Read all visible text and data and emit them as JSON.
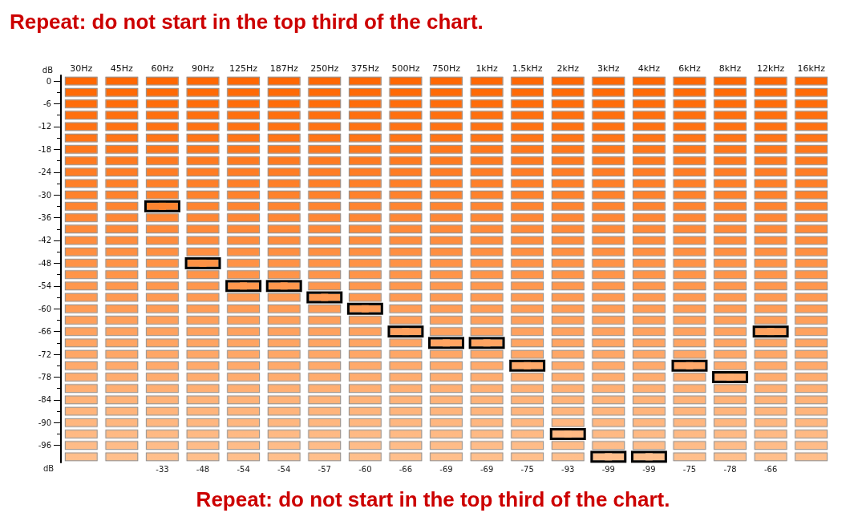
{
  "chart_data": {
    "type": "scatter",
    "title": "Repeat: do not start in the top third of the chart.",
    "ylabel": "dB",
    "annotations": [
      "dB",
      "Repeat: do not start in the top third of the chart."
    ],
    "categories": [
      "30Hz",
      "45Hz",
      "60Hz",
      "90Hz",
      "125Hz",
      "187Hz",
      "250Hz",
      "375Hz",
      "500Hz",
      "750Hz",
      "1kHz",
      "1.5kHz",
      "2kHz",
      "3kHz",
      "4kHz",
      "6kHz",
      "8kHz",
      "12kHz",
      "16kHz"
    ],
    "values": [
      null,
      null,
      -33,
      -48,
      -54,
      -54,
      -57,
      -60,
      -66,
      -69,
      -69,
      -75,
      -93,
      -99,
      -99,
      -75,
      -78,
      -66,
      null
    ],
    "colors": [
      null,
      null,
      "#ff842f",
      "#ff9245",
      "#ff974d",
      "#ff974d",
      "#ff9a52",
      "#ff9d56",
      "#ffa25f",
      "#ffa563",
      "#ffa563",
      "#ffaa6c",
      "#ffbb85",
      "#ffc08e",
      "#ffc08e",
      "#ffaa6c",
      "#ffad70",
      "#ffa25f",
      null
    ],
    "marker": "square",
    "data_labels": true,
    "ylim": [
      -100.5,
      1.5
    ],
    "yticks": [
      0,
      {
        "value": -3,
        "label": null
      },
      -6,
      {
        "value": -9,
        "label": null
      },
      -12,
      {
        "value": -15,
        "label": null
      },
      -18,
      {
        "value": -21,
        "label": null
      },
      -24,
      {
        "value": -27,
        "label": null
      },
      -30,
      {
        "value": -33,
        "label": null
      },
      -36,
      {
        "value": -39,
        "label": null
      },
      -42,
      {
        "value": -45,
        "label": null
      },
      -48,
      {
        "value": -51,
        "label": null
      },
      -54,
      {
        "value": -57,
        "label": null
      },
      -60,
      {
        "value": -63,
        "label": null
      },
      -66,
      {
        "value": -69,
        "label": null
      },
      -72,
      {
        "value": -75,
        "label": null
      },
      -78,
      {
        "value": -81,
        "label": null
      },
      -84,
      {
        "value": -87,
        "label": null
      },
      -90,
      {
        "value": -93,
        "label": null
      },
      -96
    ]
  }
}
